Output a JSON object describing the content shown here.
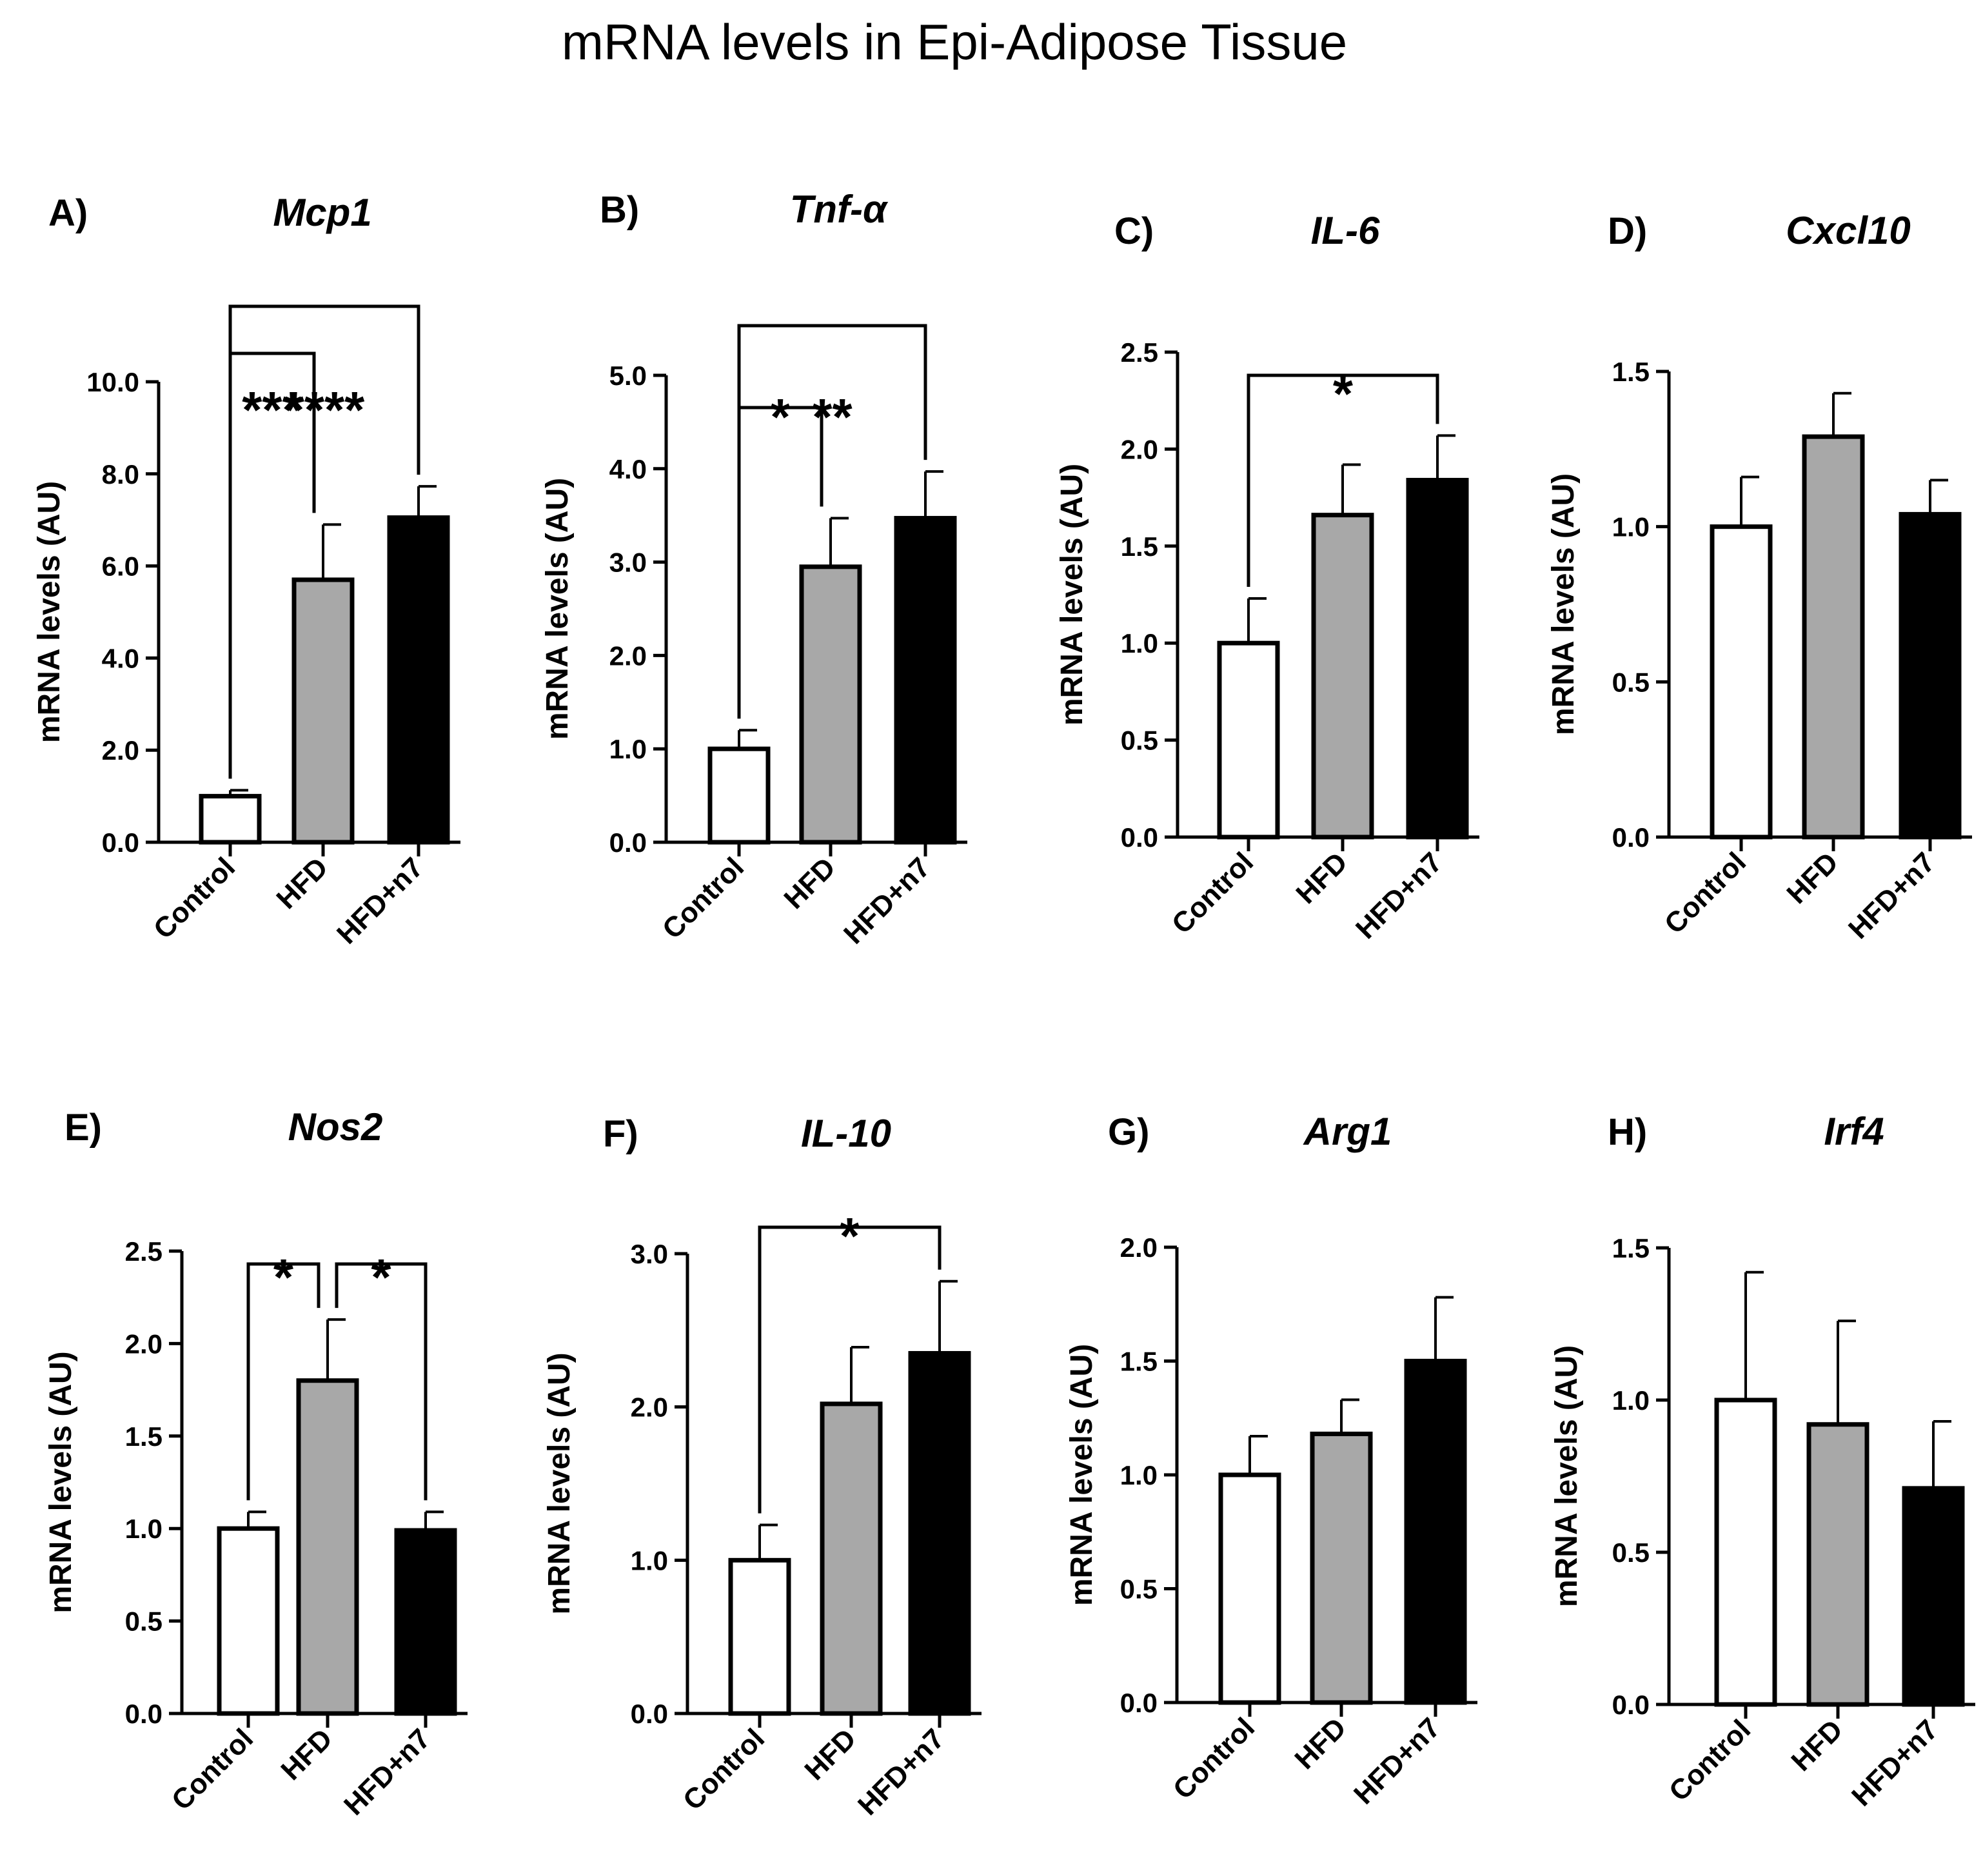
{
  "title": "mRNA levels in Epi-Adipose Tissue",
  "colors": {
    "control": "#ffffff",
    "hfd": "#a8a8a8",
    "hfd_n7": "#000000",
    "stroke": "#000000"
  },
  "chart_data": [
    {
      "type": "bar",
      "panel": "A)",
      "title": "Mcp1",
      "ylabel": "mRNA levels (AU)",
      "categories": [
        "Control",
        "HFD",
        "HFD+n7"
      ],
      "values": [
        1.0,
        5.7,
        7.05
      ],
      "errors": [
        0.13,
        1.2,
        0.68
      ],
      "ylim": [
        0,
        10
      ],
      "yticks": [
        "0.0",
        "2.0",
        "4.0",
        "6.0",
        "8.0",
        "10.0"
      ],
      "significance": [
        {
          "from": 0,
          "to": 1,
          "label": "***"
        },
        {
          "from": 0,
          "to": 2,
          "label": "****"
        }
      ]
    },
    {
      "type": "bar",
      "panel": "B)",
      "title": "Tnf-α",
      "ylabel": "mRNA levels (AU)",
      "categories": [
        "Control",
        "HFD",
        "HFD+n7"
      ],
      "values": [
        1.0,
        2.95,
        3.47
      ],
      "errors": [
        0.2,
        0.52,
        0.5
      ],
      "ylim": [
        0,
        5
      ],
      "yticks": [
        "0.0",
        "1.0",
        "2.0",
        "3.0",
        "4.0",
        "5.0"
      ],
      "significance": [
        {
          "from": 0,
          "to": 1,
          "label": "*"
        },
        {
          "from": 0,
          "to": 2,
          "label": "**"
        }
      ]
    },
    {
      "type": "bar",
      "panel": "C)",
      "title": "IL-6",
      "ylabel": "mRNA levels (AU)",
      "categories": [
        "Control",
        "HFD",
        "HFD+n7"
      ],
      "values": [
        1.0,
        1.66,
        1.84
      ],
      "errors": [
        0.23,
        0.26,
        0.23
      ],
      "ylim": [
        0,
        2.5
      ],
      "yticks": [
        "0.0",
        "0.5",
        "1.0",
        "1.5",
        "2.0",
        "2.5"
      ],
      "significance": [
        {
          "from": 0,
          "to": 2,
          "label": "*"
        }
      ]
    },
    {
      "type": "bar",
      "panel": "D)",
      "title": "Cxcl10",
      "ylabel": "mRNA levels (AU)",
      "categories": [
        "Control",
        "HFD",
        "HFD+n7"
      ],
      "values": [
        1.0,
        1.29,
        1.04
      ],
      "errors": [
        0.16,
        0.14,
        0.11
      ],
      "ylim": [
        0,
        1.5
      ],
      "yticks": [
        "0.0",
        "0.5",
        "1.0",
        "1.5"
      ],
      "significance": []
    },
    {
      "type": "bar",
      "panel": "E)",
      "title": "Nos2",
      "ylabel": "mRNA levels (AU)",
      "categories": [
        "Control",
        "HFD",
        "HFD+n7"
      ],
      "values": [
        1.0,
        1.8,
        0.99
      ],
      "errors": [
        0.09,
        0.33,
        0.1
      ],
      "ylim": [
        0,
        2.5
      ],
      "yticks": [
        "0.0",
        "0.5",
        "1.0",
        "1.5",
        "2.0",
        "2.5"
      ],
      "significance": [
        {
          "from": 0,
          "to": 1,
          "label": "*"
        },
        {
          "from": 1,
          "to": 2,
          "label": "*"
        }
      ]
    },
    {
      "type": "bar",
      "panel": "F)",
      "title": "IL-10",
      "ylabel": "mRNA levels (AU)",
      "categories": [
        "Control",
        "HFD",
        "HFD+n7"
      ],
      "values": [
        1.0,
        2.02,
        2.35
      ],
      "errors": [
        0.23,
        0.37,
        0.47
      ],
      "ylim": [
        0,
        3
      ],
      "yticks": [
        "0.0",
        "1.0",
        "2.0",
        "3.0"
      ],
      "significance": [
        {
          "from": 0,
          "to": 2,
          "label": "*"
        }
      ]
    },
    {
      "type": "bar",
      "panel": "G)",
      "title": "Arg1",
      "ylabel": "mRNA levels (AU)",
      "categories": [
        "Control",
        "HFD",
        "HFD+n7"
      ],
      "values": [
        1.0,
        1.18,
        1.5
      ],
      "errors": [
        0.17,
        0.15,
        0.28
      ],
      "ylim": [
        0,
        2
      ],
      "yticks": [
        "0.0",
        "0.5",
        "1.0",
        "1.5",
        "2.0"
      ],
      "significance": []
    },
    {
      "type": "bar",
      "panel": "H)",
      "title": "Irf4",
      "ylabel": "mRNA levels (AU)",
      "categories": [
        "Control",
        "HFD",
        "HFD+n7"
      ],
      "values": [
        1.0,
        0.92,
        0.71
      ],
      "errors": [
        0.42,
        0.34,
        0.22
      ],
      "ylim": [
        0,
        1.5
      ],
      "yticks": [
        "0.0",
        "0.5",
        "1.0",
        "1.5"
      ],
      "significance": []
    }
  ]
}
